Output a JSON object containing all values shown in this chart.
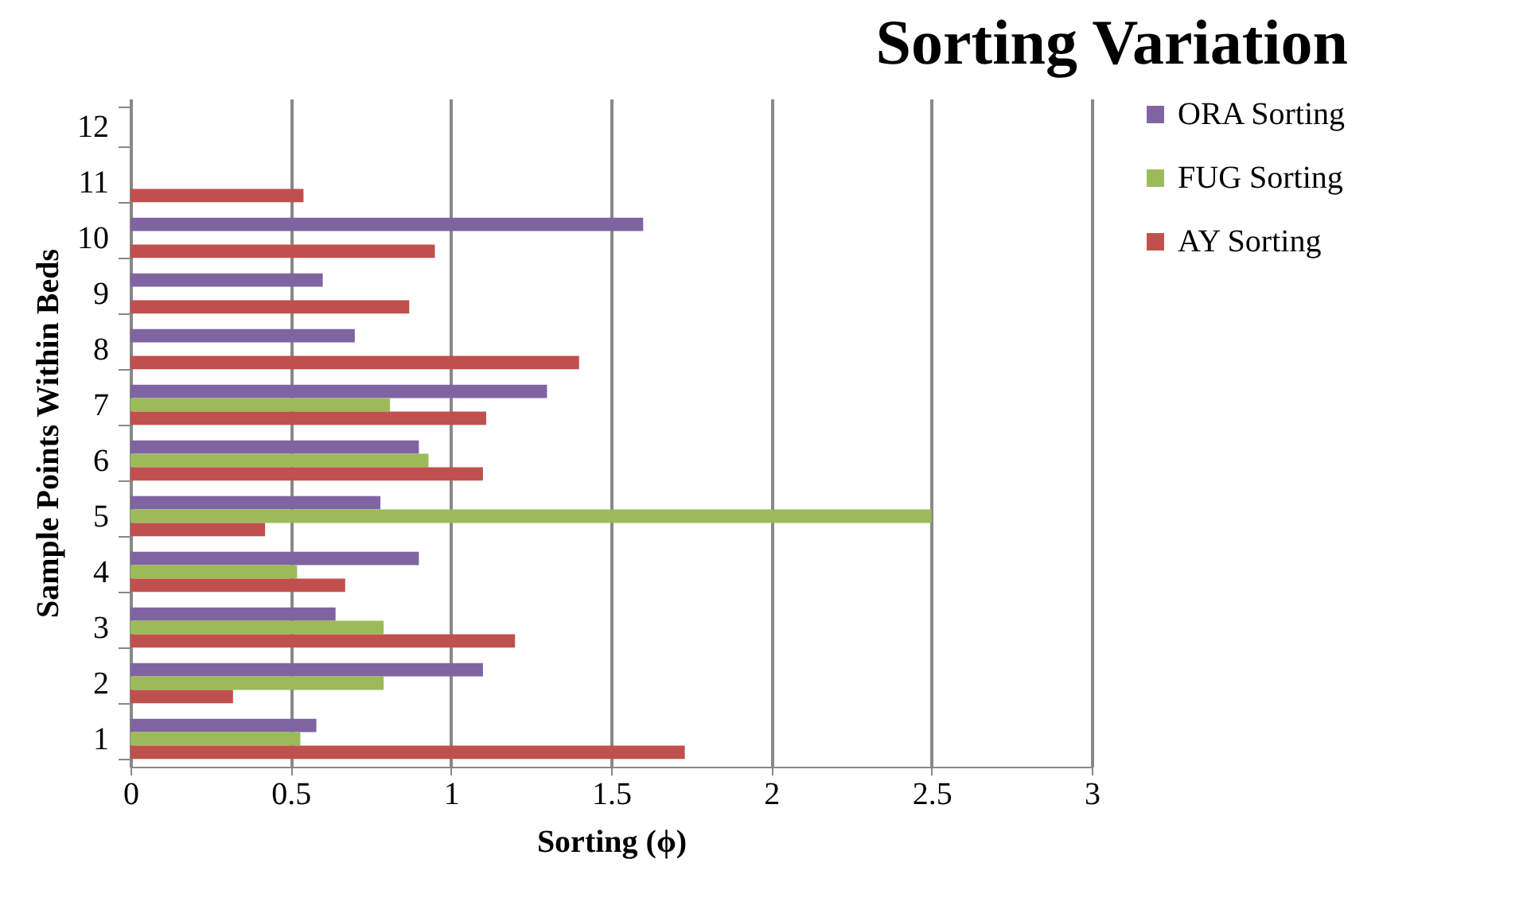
{
  "chart_data": {
    "type": "bar",
    "orientation": "horizontal",
    "title": "Sorting Variation",
    "xlabel": "Sorting (ϕ)",
    "ylabel": "Sample Points Within Beds",
    "categories": [
      "12",
      "11",
      "10",
      "9",
      "8",
      "7",
      "6",
      "5",
      "4",
      "3",
      "2",
      "1"
    ],
    "series": [
      {
        "name": "ORA Sorting",
        "color": "#8064a2",
        "values": [
          null,
          null,
          1.6,
          0.6,
          0.7,
          1.3,
          0.9,
          0.78,
          0.9,
          0.64,
          1.1,
          0.58
        ]
      },
      {
        "name": "FUG Sorting",
        "color": "#9bbb59",
        "values": [
          null,
          null,
          null,
          null,
          null,
          0.81,
          0.93,
          2.5,
          0.52,
          0.79,
          0.79,
          0.53
        ]
      },
      {
        "name": "AY Sorting",
        "color": "#c0504d",
        "values": [
          null,
          0.54,
          0.95,
          0.87,
          1.4,
          1.11,
          1.1,
          0.42,
          0.67,
          1.2,
          0.32,
          1.73
        ]
      }
    ],
    "xlim": [
      0,
      3
    ],
    "xticks": [
      0,
      0.5,
      1,
      1.5,
      2,
      2.5,
      3
    ],
    "grid": "x",
    "legend": "right"
  }
}
